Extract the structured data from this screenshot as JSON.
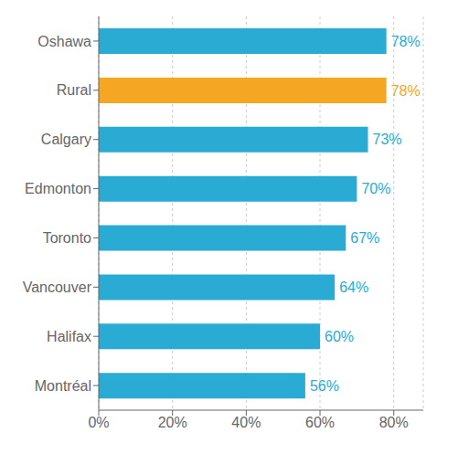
{
  "chart_data": {
    "type": "bar",
    "orientation": "horizontal",
    "categories": [
      "Montréal",
      "Halifax",
      "Vancouver",
      "Toronto",
      "Edmonton",
      "Calgary",
      "Rural",
      "Oshawa"
    ],
    "values": [
      56,
      60,
      64,
      67,
      70,
      73,
      78,
      78
    ],
    "value_labels": [
      "56%",
      "60%",
      "64%",
      "67%",
      "70%",
      "73%",
      "78%",
      "78%"
    ],
    "colors": [
      "#29ABD4",
      "#29ABD4",
      "#29ABD4",
      "#29ABD4",
      "#29ABD4",
      "#29ABD4",
      "#F5A623",
      "#29ABD4"
    ],
    "xlim": [
      0,
      88
    ],
    "xticks": [
      {
        "value": 0,
        "label": "0%"
      },
      {
        "value": 20,
        "label": "20%"
      },
      {
        "value": 40,
        "label": "40%"
      },
      {
        "value": 60,
        "label": "60%"
      },
      {
        "value": 80,
        "label": "80%"
      }
    ],
    "grid": true,
    "data_labels": true
  }
}
